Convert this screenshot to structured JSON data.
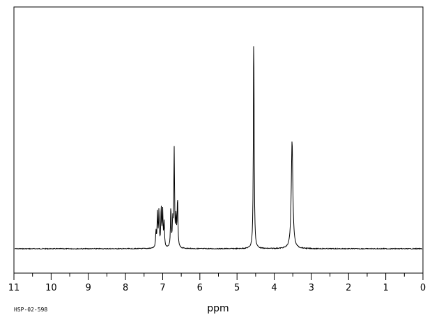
{
  "chart_data": {
    "type": "line",
    "title": "",
    "xlabel": "ppm",
    "ylabel": "",
    "x_axis_reversed": true,
    "xlim": [
      11,
      0
    ],
    "major_ticks": [
      "11",
      "10",
      "9",
      "8",
      "7",
      "6",
      "5",
      "4",
      "3",
      "2",
      "1",
      "0"
    ],
    "minor_tick_step": 0.5,
    "grid": false,
    "legend": "none",
    "sample_id": "HSP-02-598",
    "series": [
      {
        "color": "#000000",
        "peaks": [
          {
            "ppm": 7.18,
            "height": 0.07
          },
          {
            "ppm": 7.14,
            "height": 0.15
          },
          {
            "ppm": 7.1,
            "height": 0.16
          },
          {
            "ppm": 7.04,
            "height": 0.18
          },
          {
            "ppm": 7.0,
            "height": 0.16
          },
          {
            "ppm": 6.96,
            "height": 0.11
          },
          {
            "ppm": 6.78,
            "height": 0.18
          },
          {
            "ppm": 6.73,
            "height": 0.11
          },
          {
            "ppm": 6.69,
            "height": 0.44
          },
          {
            "ppm": 6.64,
            "height": 0.13
          },
          {
            "ppm": 6.6,
            "height": 0.22
          },
          {
            "ppm": 4.55,
            "height": 1.0
          },
          {
            "ppm": 3.52,
            "height": 0.49
          }
        ]
      }
    ]
  }
}
